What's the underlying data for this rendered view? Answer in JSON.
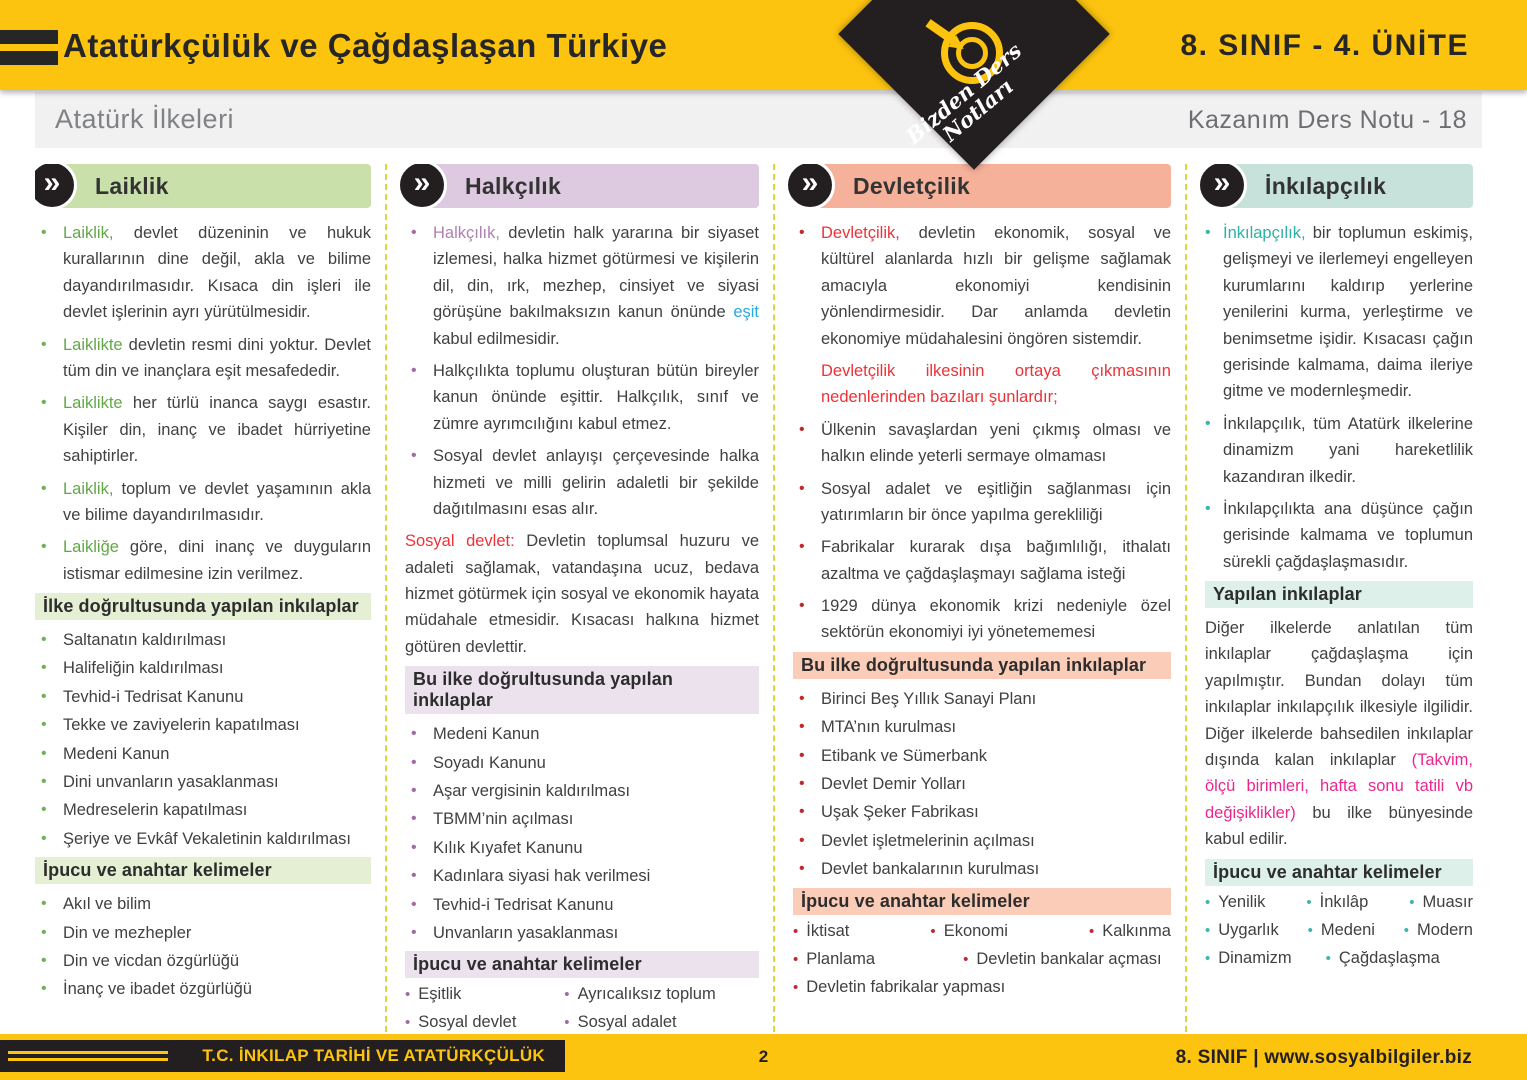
{
  "header": {
    "title": "Atatürkçülük ve Çağdaşlaşan Türkiye",
    "unit": "8. SINIF - 4. ÜNİTE",
    "subtitle": "Atatürk İlkeleri",
    "note": "Kazanım Ders Notu - 18",
    "logo_line1": "Bizden Ders",
    "logo_line2": "Notları"
  },
  "footer": {
    "course": "T.C. İNKILAP TARİHİ VE ATATÜRKÇÜLÜK",
    "page": "2",
    "right": "8. SINIF  |  www.sosyalbilgiler.biz"
  },
  "colors": {
    "yellow": "#fdc40f",
    "blue": "#2aa9e0",
    "red": "#ed3237",
    "pink": "#ec268f",
    "body": "#414042",
    "separator": "#d7d93f"
  },
  "columns": [
    {
      "id": "laiklik",
      "title": "Laiklik",
      "accent": "#62a846",
      "bullet_color": "#6fb253",
      "header_bg": "#c9e0aa",
      "subhead_bg": "#e5efd3",
      "blocks": [
        {
          "type": "bullet",
          "runs": [
            {
              "c": "accent",
              "t": "Laiklik, "
            },
            {
              "t": "devlet düzeninin ve hukuk kurallarının dine değil, akla ve bilime dayandırılmasıdır. Kısaca din işleri ile devlet işlerinin ayrı yürütülmesidir."
            }
          ]
        },
        {
          "type": "bullet",
          "runs": [
            {
              "c": "accent",
              "t": "Laiklikte "
            },
            {
              "t": "devletin resmi dini yoktur. Devlet tüm din ve inançlara eşit mesafededir."
            }
          ]
        },
        {
          "type": "bullet",
          "runs": [
            {
              "c": "accent",
              "t": "Laiklikte "
            },
            {
              "t": "her türlü inanca saygı esastır. Kişiler din, inanç ve ibadet hürriyetine sahiptirler."
            }
          ]
        },
        {
          "type": "bullet",
          "runs": [
            {
              "c": "accent",
              "t": "Laiklik, "
            },
            {
              "t": "toplum ve devlet yaşamının akla ve bilime dayandırılmasıdır."
            }
          ]
        },
        {
          "type": "bullet",
          "runs": [
            {
              "c": "accent",
              "t": "Laikliğe "
            },
            {
              "t": "göre, dini inanç ve duyguların istismar edilmesine izin verilmez."
            }
          ]
        },
        {
          "type": "subhead",
          "text": "İlke doğrultusunda yapılan inkılaplar"
        },
        {
          "type": "bullet-plain",
          "runs": [
            {
              "t": "Saltanatın kaldırılması"
            }
          ]
        },
        {
          "type": "bullet-plain",
          "runs": [
            {
              "t": "Halifeliğin kaldırılması"
            }
          ]
        },
        {
          "type": "bullet-plain",
          "runs": [
            {
              "t": "Tevhid-i Tedrisat Kanunu"
            }
          ]
        },
        {
          "type": "bullet-plain",
          "runs": [
            {
              "t": "Tekke ve zaviyelerin kapatılması"
            }
          ]
        },
        {
          "type": "bullet-plain",
          "runs": [
            {
              "t": "Medeni Kanun"
            }
          ]
        },
        {
          "type": "bullet-plain",
          "runs": [
            {
              "t": "Dini unvanların yasaklanması"
            }
          ]
        },
        {
          "type": "bullet-plain",
          "runs": [
            {
              "t": "Medreselerin kapatılması"
            }
          ]
        },
        {
          "type": "bullet-plain",
          "runs": [
            {
              "t": "Şeriye ve Evkâf Vekaletinin kaldırılması"
            }
          ]
        },
        {
          "type": "subhead",
          "text": "İpucu ve anahtar kelimeler"
        },
        {
          "type": "bullet-plain",
          "runs": [
            {
              "t": "Akıl ve bilim"
            }
          ]
        },
        {
          "type": "bullet-plain",
          "runs": [
            {
              "t": "Din ve mezhepler"
            }
          ]
        },
        {
          "type": "bullet-plain",
          "runs": [
            {
              "t": "Din ve vicdan özgürlüğü"
            }
          ]
        },
        {
          "type": "bullet-plain",
          "runs": [
            {
              "t": "İnanç ve ibadet özgürlüğü"
            }
          ]
        }
      ]
    },
    {
      "id": "halkcilik",
      "title": "Halkçılık",
      "accent": "#b07fb2",
      "bullet_color": "#a06ba5",
      "header_bg": "#ddc9e0",
      "subhead_bg": "#ece2ee",
      "blocks": [
        {
          "type": "bullet",
          "runs": [
            {
              "c": "accent",
              "t": "Halkçılık, "
            },
            {
              "t": "devletin halk yararına bir siyaset izlemesi, halka hizmet götürmesi ve kişilerin dil, din, ırk, mezhep, cinsiyet ve siyasi görüşüne bakılmaksızın kanun önünde "
            },
            {
              "c": "blue",
              "t": "eşit"
            },
            {
              "t": " kabul edilmesidir."
            }
          ]
        },
        {
          "type": "bullet",
          "runs": [
            {
              "t": "Halkçılıkta toplumu oluşturan bütün bireyler kanun önünde eşittir. Halkçılık, sınıf ve zümre ayrımcılığını kabul etmez."
            }
          ]
        },
        {
          "type": "bullet",
          "runs": [
            {
              "t": "Sosyal devlet anlayışı çerçevesinde halka hizmeti ve milli gelirin adaletli bir şekilde dağıtılmasını esas alır."
            }
          ]
        },
        {
          "type": "para",
          "runs": [
            {
              "c": "red",
              "t": "Sosyal devlet: "
            },
            {
              "t": "Devletin toplumsal huzuru ve adaleti sağlamak, vatandaşına ucuz, bedava hizmet götürmek için sosyal ve ekonomik hayata müdahale etmesidir. Kısacası halkına hizmet götüren devlettir."
            }
          ]
        },
        {
          "type": "subhead",
          "text": "Bu ilke doğrultusunda yapılan inkılaplar"
        },
        {
          "type": "bullet-plain",
          "runs": [
            {
              "t": "Medeni Kanun"
            }
          ]
        },
        {
          "type": "bullet-plain",
          "runs": [
            {
              "t": "Soyadı Kanunu"
            }
          ]
        },
        {
          "type": "bullet-plain",
          "runs": [
            {
              "t": "Aşar vergisinin kaldırılması"
            }
          ]
        },
        {
          "type": "bullet-plain",
          "runs": [
            {
              "t": "TBMM’nin açılması"
            }
          ]
        },
        {
          "type": "bullet-plain",
          "runs": [
            {
              "t": "Kılık Kıyafet Kanunu"
            }
          ]
        },
        {
          "type": "bullet-plain",
          "runs": [
            {
              "t": "Kadınlara siyasi hak verilmesi"
            }
          ]
        },
        {
          "type": "bullet-plain",
          "runs": [
            {
              "t": "Tevhid-i Tedrisat Kanunu"
            }
          ]
        },
        {
          "type": "bullet-plain",
          "runs": [
            {
              "t": "Unvanların yasaklanması"
            }
          ]
        },
        {
          "type": "subhead",
          "text": "İpucu ve anahtar kelimeler"
        },
        {
          "type": "keywords",
          "rows": [
            [
              "Eşitlik",
              "Ayrıcalıksız toplum"
            ],
            [
              "Sosyal devlet",
              "Sosyal adalet"
            ]
          ]
        }
      ]
    },
    {
      "id": "devletcilik",
      "title": "Devletçilik",
      "accent": "#ed3237",
      "bullet_color": "#c1272d",
      "header_bg": "#f6b19b",
      "subhead_bg": "#fbccb8",
      "blocks": [
        {
          "type": "bullet",
          "runs": [
            {
              "c": "accent",
              "t": "Devletçilik, "
            },
            {
              "t": "devletin ekonomik, sosyal ve kültürel alanlarda hızlı bir gelişme sağlamak amacıyla ekonomiyi kendisinin yönlendirmesidir. Dar anlamda devletin ekonomiye müdahalesini öngören sistemdir."
            }
          ]
        },
        {
          "type": "para",
          "indent": true,
          "runs": [
            {
              "c": "accent",
              "t": "Devletçilik ilkesinin ortaya çıkmasının nedenlerinden bazıları şunlardır;"
            }
          ]
        },
        {
          "type": "bullet",
          "runs": [
            {
              "t": "Ülkenin savaşlardan yeni çıkmış olması ve halkın elinde yeterli sermaye olmaması"
            }
          ]
        },
        {
          "type": "bullet",
          "runs": [
            {
              "t": "Sosyal adalet ve eşitliğin sağlanması için yatırımların bir önce yapılma gerekliliği"
            }
          ]
        },
        {
          "type": "bullet",
          "runs": [
            {
              "t": "Fabrikalar kurarak dışa bağımlılığı, ithalatı azaltma ve çağdaşlaşmayı sağlama isteği"
            }
          ]
        },
        {
          "type": "bullet",
          "runs": [
            {
              "t": "1929 dünya ekonomik krizi nedeniyle özel sektörün ekonomiyi iyi yönetememesi"
            }
          ]
        },
        {
          "type": "subhead",
          "text": "Bu ilke doğrultusunda yapılan inkılaplar"
        },
        {
          "type": "bullet-plain",
          "runs": [
            {
              "t": "Birinci Beş Yıllık Sanayi Planı"
            }
          ]
        },
        {
          "type": "bullet-plain",
          "runs": [
            {
              "t": "MTA’nın kurulması"
            }
          ]
        },
        {
          "type": "bullet-plain",
          "runs": [
            {
              "t": "Etibank ve Sümerbank"
            }
          ]
        },
        {
          "type": "bullet-plain",
          "runs": [
            {
              "t": "Devlet Demir Yolları"
            }
          ]
        },
        {
          "type": "bullet-plain",
          "runs": [
            {
              "t": "Uşak Şeker Fabrikası"
            }
          ]
        },
        {
          "type": "bullet-plain",
          "runs": [
            {
              "t": "Devlet işletmelerinin açılması"
            }
          ]
        },
        {
          "type": "bullet-plain",
          "runs": [
            {
              "t": "Devlet bankalarının kurulması"
            }
          ]
        },
        {
          "type": "subhead",
          "text": "İpucu ve anahtar kelimeler"
        },
        {
          "type": "keywords",
          "rows": [
            [
              "İktisat",
              "Ekonomi",
              "Kalkınma"
            ],
            [
              "Planlama",
              "Devletin bankalar açması"
            ],
            [
              "Devletin fabrikalar yapması"
            ]
          ]
        }
      ]
    },
    {
      "id": "inkilapcilik",
      "title": "İnkılapçılık",
      "accent": "#2fb0a5",
      "bullet_color": "#3ab5a8",
      "header_bg": "#c7e2da",
      "subhead_bg": "#def0ea",
      "blocks": [
        {
          "type": "bullet",
          "runs": [
            {
              "c": "accent",
              "t": "İnkılapçılık, "
            },
            {
              "t": "bir toplumun eskimiş, gelişmeyi ve ilerlemeyi engelleyen kurumlarını kaldırıp yerlerine yenilerini kurma, yerleştirme ve benimsetme işidir. Kısacası çağın gerisinde kalmama, daima ileriye gitme ve modernleşmedir."
            }
          ]
        },
        {
          "type": "bullet",
          "runs": [
            {
              "t": "İnkılapçılık, tüm Atatürk ilkelerine dinamizm yani hareketlilik kazandıran ilkedir."
            }
          ]
        },
        {
          "type": "bullet",
          "runs": [
            {
              "t": "İnkılapçılıkta ana düşünce çağın gerisinde kalmama ve toplumun sürekli çağdaşlaşmasıdır."
            }
          ]
        },
        {
          "type": "subhead",
          "text": "Yapılan inkılaplar"
        },
        {
          "type": "para",
          "runs": [
            {
              "t": "Diğer ilkelerde anlatılan tüm inkılaplar çağdaşlaşma için yapılmıştır. Bundan dolayı tüm inkılaplar inkılapçılık ilkesiyle ilgilidir. Diğer ilkelerde bahsedilen inkılaplar dışında kalan inkılaplar "
            },
            {
              "c": "pink",
              "t": "(Takvim, ölçü birimleri, hafta sonu tatili vb değişiklikler)"
            },
            {
              "t": " bu ilke bünyesinde kabul edilir."
            }
          ]
        },
        {
          "type": "subhead",
          "text": "İpucu ve anahtar kelimeler"
        },
        {
          "type": "keywords",
          "rows": [
            [
              "Yenilik",
              "İnkılâp",
              "Muasır"
            ],
            [
              "Uygarlık",
              "Medeni",
              "Modern"
            ],
            [
              "Dinamizm",
              "Çağdaşlaşma"
            ]
          ]
        }
      ]
    }
  ]
}
